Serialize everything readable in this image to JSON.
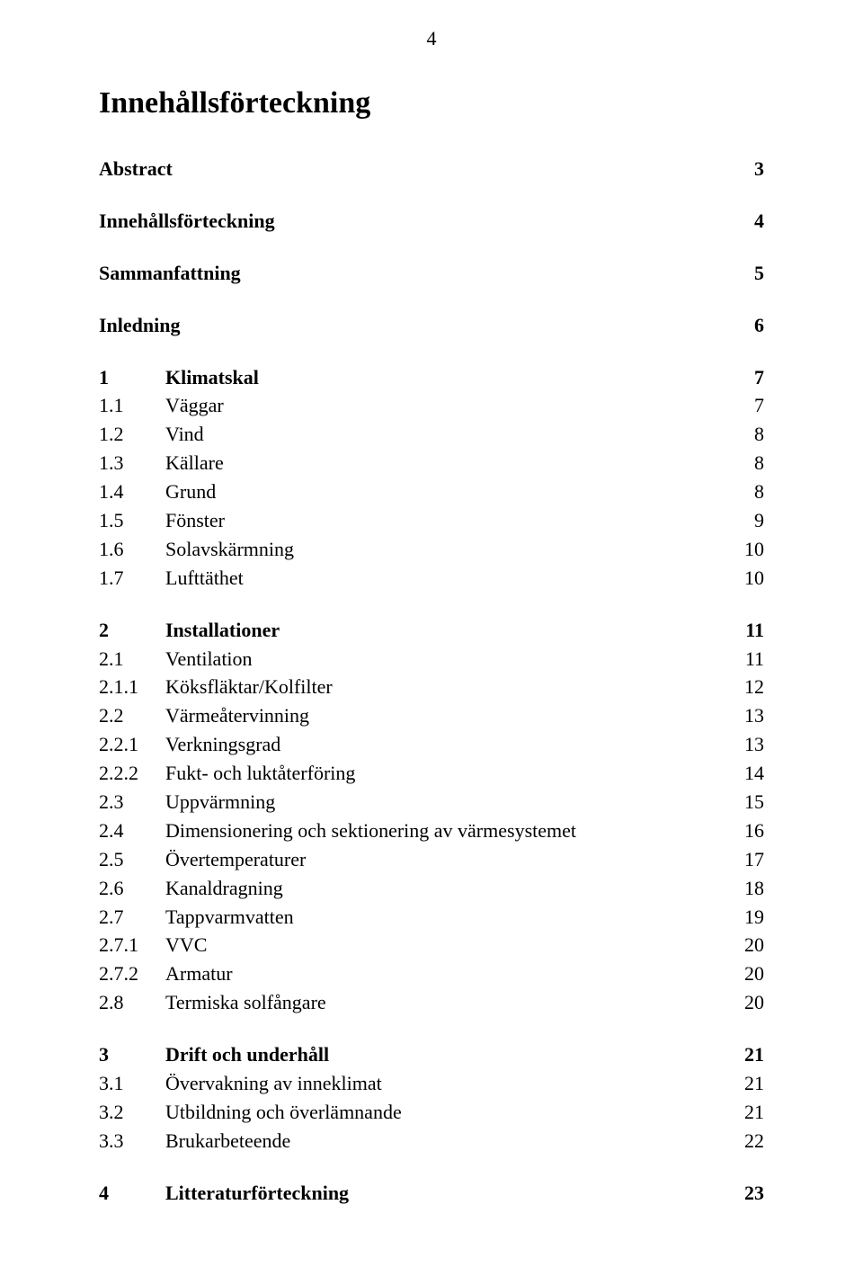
{
  "pageNumber": "4",
  "title": "Innehållsförteckning",
  "colors": {
    "text": "#000000",
    "background": "#ffffff"
  },
  "typography": {
    "fontFamily": "Times New Roman",
    "pageNumber_fontSize": 22,
    "title_fontSize": 34,
    "body_fontSize": 22,
    "lineHeight": 1.45
  },
  "blocks": [
    {
      "rows": [
        {
          "num": "",
          "label": "Abstract",
          "page": "3",
          "bold": true,
          "fullspan": true
        }
      ]
    },
    {
      "rows": [
        {
          "num": "",
          "label": "Innehållsförteckning",
          "page": "4",
          "bold": true,
          "fullspan": true
        }
      ]
    },
    {
      "rows": [
        {
          "num": "",
          "label": "Sammanfattning",
          "page": "5",
          "bold": true,
          "fullspan": true
        }
      ]
    },
    {
      "rows": [
        {
          "num": "",
          "label": "Inledning",
          "page": "6",
          "bold": true,
          "fullspan": true
        }
      ]
    },
    {
      "rows": [
        {
          "num": "1",
          "label": "Klimatskal",
          "page": "7",
          "bold": true
        },
        {
          "num": "1.1",
          "label": "Väggar",
          "page": "7"
        },
        {
          "num": "1.2",
          "label": "Vind",
          "page": "8"
        },
        {
          "num": "1.3",
          "label": "Källare",
          "page": "8"
        },
        {
          "num": "1.4",
          "label": "Grund",
          "page": "8"
        },
        {
          "num": "1.5",
          "label": "Fönster",
          "page": "9"
        },
        {
          "num": "1.6",
          "label": "Solavskärmning",
          "page": "10"
        },
        {
          "num": "1.7",
          "label": "Lufttäthet",
          "page": "10"
        }
      ]
    },
    {
      "rows": [
        {
          "num": "2",
          "label": "Installationer",
          "page": "11",
          "bold": true
        },
        {
          "num": "2.1",
          "label": "Ventilation",
          "page": "11"
        },
        {
          "num": "2.1.1",
          "label": "Köksfläktar/Kolfilter",
          "page": "12"
        },
        {
          "num": "2.2",
          "label": "Värmeåtervinning",
          "page": "13"
        },
        {
          "num": "2.2.1",
          "label": "Verkningsgrad",
          "page": "13"
        },
        {
          "num": "2.2.2",
          "label": "Fukt- och luktåterföring",
          "page": "14"
        },
        {
          "num": "2.3",
          "label": "Uppvärmning",
          "page": "15"
        },
        {
          "num": "2.4",
          "label": "Dimensionering och sektionering av värmesystemet",
          "page": "16"
        },
        {
          "num": "2.5",
          "label": "Övertemperaturer",
          "page": "17"
        },
        {
          "num": "2.6",
          "label": "Kanaldragning",
          "page": "18"
        },
        {
          "num": "2.7",
          "label": "Tappvarmvatten",
          "page": "19"
        },
        {
          "num": "2.7.1",
          "label": "VVC",
          "page": "20"
        },
        {
          "num": "2.7.2",
          "label": "Armatur",
          "page": "20"
        },
        {
          "num": "2.8",
          "label": "Termiska solfångare",
          "page": "20"
        }
      ]
    },
    {
      "rows": [
        {
          "num": "3",
          "label": "Drift och underhåll",
          "page": "21",
          "bold": true
        },
        {
          "num": "3.1",
          "label": "Övervakning av inneklimat",
          "page": "21"
        },
        {
          "num": "3.2",
          "label": "Utbildning och överlämnande",
          "page": "21"
        },
        {
          "num": "3.3",
          "label": "Brukarbeteende",
          "page": "22"
        }
      ]
    },
    {
      "rows": [
        {
          "num": "4",
          "label": "Litteraturförteckning",
          "page": "23",
          "bold": true
        }
      ]
    }
  ]
}
